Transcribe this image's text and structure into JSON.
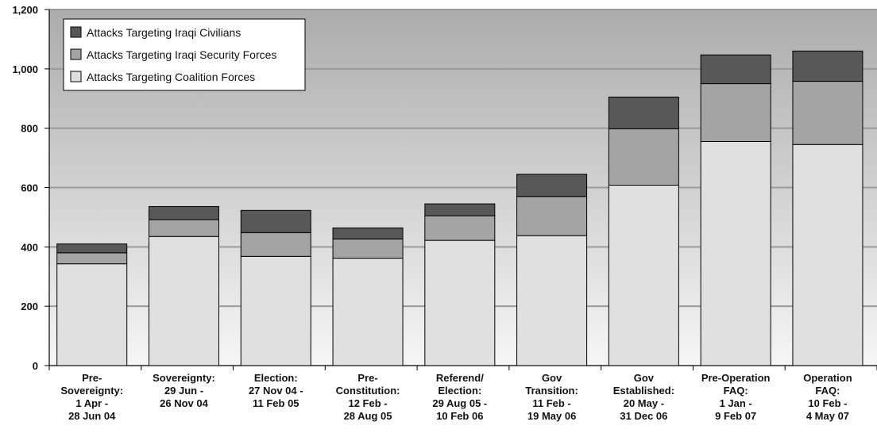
{
  "chart_data": {
    "type": "bar",
    "stacked": true,
    "title": "",
    "xlabel": "",
    "ylabel": "",
    "ylim": [
      0,
      1200
    ],
    "yticks": [
      "0",
      "200",
      "400",
      "600",
      "800",
      "1,000",
      "1,200"
    ],
    "grid": true,
    "legend_position": "top-left",
    "categories": [
      [
        "Pre-",
        "Sovereignty:",
        "1 Apr -",
        "28 Jun 04"
      ],
      [
        "Sovereignty:",
        "29 Jun -",
        "26 Nov 04"
      ],
      [
        "Election:",
        "27 Nov 04 -",
        "11 Feb 05"
      ],
      [
        "Pre-",
        "Constitution:",
        "12 Feb -",
        "28 Aug 05"
      ],
      [
        "Referend/",
        "Election:",
        "29 Aug 05 -",
        "10 Feb 06"
      ],
      [
        "Gov",
        "Transition:",
        "11 Feb -",
        "19 May 06"
      ],
      [
        "Gov",
        "Established:",
        "20 May -",
        "31 Dec 06"
      ],
      [
        "Pre-Operation",
        "FAQ:",
        "1 Jan -",
        "9 Feb 07"
      ],
      [
        "Operation",
        "FAQ:",
        "10 Feb -",
        "4 May 07"
      ]
    ],
    "series": [
      {
        "name": "Attacks Targeting Coalition Forces",
        "color": "#e0e0e0",
        "values": [
          343,
          435,
          368,
          362,
          422,
          438,
          608,
          755,
          745
        ]
      },
      {
        "name": "Attacks Targeting Iraqi Security Forces",
        "color": "#a4a4a4",
        "values": [
          37,
          57,
          80,
          65,
          83,
          132,
          190,
          195,
          213
        ]
      },
      {
        "name": "Attacks Targeting Iraqi Civilians",
        "color": "#585858",
        "values": [
          30,
          44,
          75,
          37,
          40,
          75,
          107,
          97,
          102
        ]
      }
    ],
    "legend_order": [
      "Attacks Targeting Iraqi Civilians",
      "Attacks Targeting Iraqi Security Forces",
      "Attacks Targeting Coalition Forces"
    ]
  }
}
